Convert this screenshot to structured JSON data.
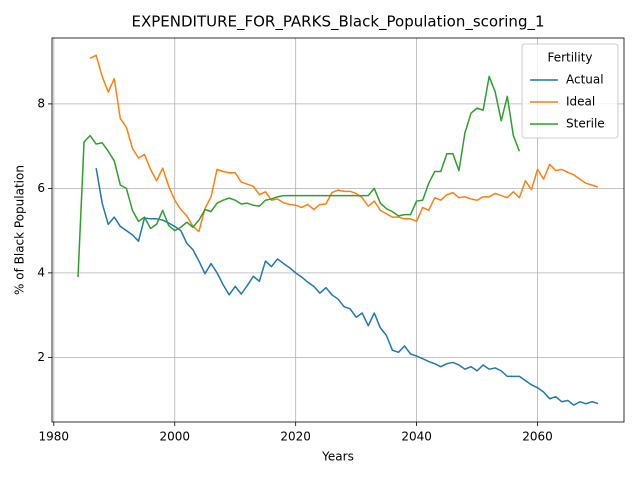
{
  "chart_data": {
    "type": "line",
    "title": "EXPENDITURE_FOR_PARKS_Black_Population_scoring_1",
    "x_label": "Years",
    "y_label": "% of Black Population",
    "legend_title": "Fertility",
    "legend_position": "upper right",
    "grid": true,
    "xlim": [
      1979.7,
      2074.3
    ],
    "xticks": [
      1980,
      2000,
      2020,
      2040,
      2060
    ],
    "ylim": [
      0.47,
      9.56
    ],
    "yticks": [
      2,
      4,
      6,
      8
    ],
    "x": [
      1984,
      1985,
      1986,
      1987,
      1988,
      1989,
      1990,
      1991,
      1992,
      1993,
      1994,
      1995,
      1996,
      1997,
      1998,
      1999,
      2000,
      2001,
      2002,
      2003,
      2004,
      2005,
      2006,
      2007,
      2008,
      2009,
      2010,
      2011,
      2012,
      2013,
      2014,
      2015,
      2016,
      2017,
      2018,
      2019,
      2020,
      2021,
      2022,
      2023,
      2024,
      2025,
      2026,
      2027,
      2028,
      2029,
      2030,
      2031,
      2032,
      2033,
      2034,
      2035,
      2036,
      2037,
      2038,
      2039,
      2040,
      2041,
      2042,
      2043,
      2044,
      2045,
      2046,
      2047,
      2048,
      2049,
      2050,
      2051,
      2052,
      2053,
      2054,
      2055,
      2056,
      2057,
      2058,
      2059,
      2060,
      2061,
      2062,
      2063,
      2064,
      2065,
      2066,
      2067,
      2068,
      2069,
      2070
    ],
    "series": [
      {
        "name": "Actual",
        "color": "#1f77b4",
        "values": [
          null,
          null,
          null,
          6.48,
          5.65,
          5.15,
          5.32,
          5.1,
          5.0,
          4.9,
          4.75,
          5.3,
          5.28,
          5.28,
          5.25,
          5.18,
          5.1,
          5.0,
          4.7,
          4.55,
          4.28,
          3.98,
          4.22,
          4.0,
          3.72,
          3.48,
          3.68,
          3.5,
          3.7,
          3.92,
          3.8,
          4.28,
          4.15,
          4.33,
          4.22,
          4.12,
          4.0,
          3.9,
          3.78,
          3.68,
          3.52,
          3.65,
          3.48,
          3.38,
          3.2,
          3.15,
          2.95,
          3.05,
          2.75,
          3.05,
          2.7,
          2.52,
          2.17,
          2.12,
          2.27,
          2.08,
          2.03,
          1.97,
          1.9,
          1.85,
          1.78,
          1.85,
          1.88,
          1.82,
          1.72,
          1.78,
          1.68,
          1.82,
          1.72,
          1.75,
          1.68,
          1.55,
          1.55,
          1.55,
          1.45,
          1.35,
          1.28,
          1.18,
          1.02,
          1.07,
          0.95,
          0.98,
          0.87,
          0.95,
          0.9,
          0.95,
          0.91
        ]
      },
      {
        "name": "Ideal",
        "color": "#ff7f0e",
        "values": [
          null,
          null,
          9.08,
          9.15,
          8.65,
          8.28,
          8.6,
          7.65,
          7.45,
          6.95,
          6.72,
          6.8,
          6.45,
          6.18,
          6.48,
          6.05,
          5.72,
          5.5,
          5.35,
          5.1,
          4.98,
          5.52,
          5.8,
          6.45,
          6.4,
          6.37,
          6.37,
          6.15,
          6.1,
          6.05,
          5.85,
          5.92,
          5.72,
          5.75,
          5.66,
          5.62,
          5.6,
          5.55,
          5.62,
          5.5,
          5.62,
          5.63,
          5.9,
          5.96,
          5.93,
          5.93,
          5.88,
          5.78,
          5.58,
          5.7,
          5.48,
          5.4,
          5.32,
          5.32,
          5.28,
          5.28,
          5.22,
          5.55,
          5.48,
          5.78,
          5.72,
          5.85,
          5.9,
          5.78,
          5.8,
          5.75,
          5.72,
          5.8,
          5.8,
          5.88,
          5.83,
          5.78,
          5.92,
          5.78,
          6.18,
          5.97,
          6.45,
          6.22,
          6.57,
          6.42,
          6.45,
          6.38,
          6.32,
          6.22,
          6.12,
          6.08,
          6.03
        ]
      },
      {
        "name": "Sterile",
        "color": "#2ca02c",
        "values": [
          3.9,
          7.1,
          7.25,
          7.05,
          7.08,
          6.88,
          6.65,
          6.08,
          6.0,
          5.48,
          5.22,
          5.32,
          5.05,
          5.15,
          5.48,
          5.12,
          5.0,
          5.08,
          5.2,
          5.08,
          5.25,
          5.5,
          5.45,
          5.65,
          5.72,
          5.77,
          5.72,
          5.63,
          5.65,
          5.6,
          5.58,
          5.72,
          5.75,
          5.8,
          5.83,
          5.83,
          5.83,
          5.83,
          5.83,
          5.83,
          5.83,
          5.83,
          5.83,
          5.83,
          5.83,
          5.83,
          5.83,
          5.83,
          5.83,
          6.0,
          5.65,
          5.52,
          5.45,
          5.35,
          5.38,
          5.38,
          5.7,
          5.72,
          6.12,
          6.4,
          6.4,
          6.82,
          6.82,
          6.42,
          7.32,
          7.78,
          7.9,
          7.85,
          8.65,
          8.28,
          7.6,
          8.18,
          7.25,
          6.88,
          null,
          null,
          null,
          null,
          null,
          null,
          null,
          null,
          null,
          null,
          null,
          null,
          null
        ]
      }
    ]
  }
}
